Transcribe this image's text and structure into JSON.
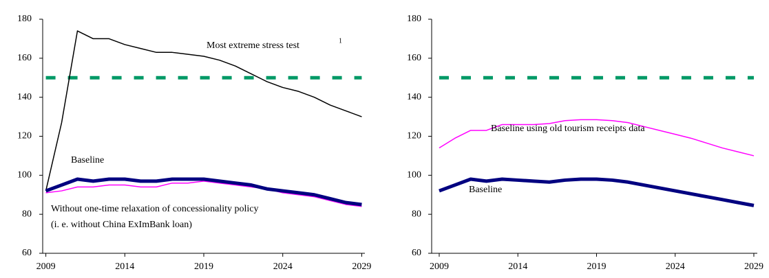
{
  "chart_data": [
    {
      "type": "line",
      "x": [
        2009,
        2010,
        2011,
        2012,
        2013,
        2014,
        2015,
        2016,
        2017,
        2018,
        2019,
        2020,
        2021,
        2022,
        2023,
        2024,
        2025,
        2026,
        2027,
        2028,
        2029
      ],
      "xlim": [
        2008.8,
        2029.2
      ],
      "xticks": [
        2009,
        2014,
        2019,
        2024,
        2029
      ],
      "ylim": [
        60,
        180
      ],
      "yticks": [
        60,
        80,
        100,
        120,
        140,
        160,
        180
      ],
      "series": [
        {
          "color": "#009966",
          "dashed": true,
          "values": [
            150,
            150,
            150,
            150,
            150,
            150,
            150,
            150,
            150,
            150,
            150,
            150,
            150,
            150,
            150,
            150,
            150,
            150,
            150,
            150,
            150
          ]
        },
        {
          "name": "Most extreme  stress test",
          "color": "#000000",
          "values": [
            92,
            127,
            174,
            170,
            170,
            167,
            165,
            163,
            163,
            162,
            161,
            159,
            156,
            152,
            148,
            145,
            143,
            140,
            136,
            133,
            130
          ]
        },
        {
          "name": "Without one-time relaxation of concessionality policy",
          "color": "#ff00ff",
          "values": [
            91,
            92,
            94,
            94,
            95,
            95,
            94,
            94,
            96,
            96,
            97,
            96,
            95,
            94,
            93,
            91,
            90,
            89,
            87,
            85,
            84
          ]
        },
        {
          "name": "Baseline",
          "color": "#000080",
          "thick": true,
          "values": [
            92,
            95,
            98,
            97,
            98,
            98,
            97,
            97,
            98,
            98,
            98,
            97,
            96,
            95,
            93,
            92,
            91,
            90,
            88,
            86,
            85
          ]
        }
      ],
      "annotations": [
        "1",
        "(i. e. without  China ExImBank loan)"
      ]
    },
    {
      "type": "line",
      "x": [
        2009,
        2010,
        2011,
        2012,
        2013,
        2014,
        2015,
        2016,
        2017,
        2018,
        2019,
        2020,
        2021,
        2022,
        2023,
        2024,
        2025,
        2026,
        2027,
        2028,
        2029
      ],
      "xlim": [
        2008.52,
        2029.22
      ],
      "xticks": [
        2009,
        2014,
        2019,
        2024,
        2029
      ],
      "ylim": [
        60,
        180
      ],
      "yticks": [
        60,
        80,
        100,
        120,
        140,
        160,
        180
      ],
      "series": [
        {
          "color": "#009966",
          "dashed": true,
          "values": [
            150,
            150,
            150,
            150,
            150,
            150,
            150,
            150,
            150,
            150,
            150,
            150,
            150,
            150,
            150,
            150,
            150,
            150,
            150,
            150,
            150
          ]
        },
        {
          "name": "Baseline using old tourism receipts data",
          "color": "#ff00ff",
          "values": [
            114,
            119,
            123,
            123,
            126,
            126,
            126,
            126.5,
            128,
            128.5,
            128.5,
            128,
            127,
            125,
            123,
            121,
            119,
            116.5,
            114,
            112,
            110
          ]
        },
        {
          "name": "Baseline",
          "color": "#000080",
          "thick": true,
          "values": [
            92,
            95,
            98,
            97,
            98,
            97.5,
            97,
            96.5,
            97.5,
            98,
            98,
            97.5,
            96.5,
            95,
            93.5,
            92,
            90.5,
            89,
            87.5,
            86,
            84.5
          ]
        }
      ],
      "annotations": []
    }
  ]
}
